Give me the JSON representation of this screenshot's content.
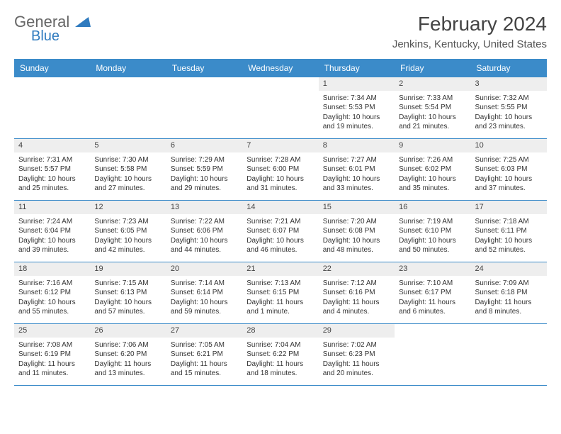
{
  "logo": {
    "general": "General",
    "blue": "Blue"
  },
  "title": "February 2024",
  "location": "Jenkins, Kentucky, United States",
  "colors": {
    "header_bar": "#3b8bc9",
    "daynum_bg": "#eeeeee",
    "text": "#333333",
    "rule": "#3b8bc9"
  },
  "days_of_week": [
    "Sunday",
    "Monday",
    "Tuesday",
    "Wednesday",
    "Thursday",
    "Friday",
    "Saturday"
  ],
  "weeks": [
    [
      null,
      null,
      null,
      null,
      {
        "n": "1",
        "sr": "Sunrise: 7:34 AM",
        "ss": "Sunset: 5:53 PM",
        "d1": "Daylight: 10 hours",
        "d2": "and 19 minutes."
      },
      {
        "n": "2",
        "sr": "Sunrise: 7:33 AM",
        "ss": "Sunset: 5:54 PM",
        "d1": "Daylight: 10 hours",
        "d2": "and 21 minutes."
      },
      {
        "n": "3",
        "sr": "Sunrise: 7:32 AM",
        "ss": "Sunset: 5:55 PM",
        "d1": "Daylight: 10 hours",
        "d2": "and 23 minutes."
      }
    ],
    [
      {
        "n": "4",
        "sr": "Sunrise: 7:31 AM",
        "ss": "Sunset: 5:57 PM",
        "d1": "Daylight: 10 hours",
        "d2": "and 25 minutes."
      },
      {
        "n": "5",
        "sr": "Sunrise: 7:30 AM",
        "ss": "Sunset: 5:58 PM",
        "d1": "Daylight: 10 hours",
        "d2": "and 27 minutes."
      },
      {
        "n": "6",
        "sr": "Sunrise: 7:29 AM",
        "ss": "Sunset: 5:59 PM",
        "d1": "Daylight: 10 hours",
        "d2": "and 29 minutes."
      },
      {
        "n": "7",
        "sr": "Sunrise: 7:28 AM",
        "ss": "Sunset: 6:00 PM",
        "d1": "Daylight: 10 hours",
        "d2": "and 31 minutes."
      },
      {
        "n": "8",
        "sr": "Sunrise: 7:27 AM",
        "ss": "Sunset: 6:01 PM",
        "d1": "Daylight: 10 hours",
        "d2": "and 33 minutes."
      },
      {
        "n": "9",
        "sr": "Sunrise: 7:26 AM",
        "ss": "Sunset: 6:02 PM",
        "d1": "Daylight: 10 hours",
        "d2": "and 35 minutes."
      },
      {
        "n": "10",
        "sr": "Sunrise: 7:25 AM",
        "ss": "Sunset: 6:03 PM",
        "d1": "Daylight: 10 hours",
        "d2": "and 37 minutes."
      }
    ],
    [
      {
        "n": "11",
        "sr": "Sunrise: 7:24 AM",
        "ss": "Sunset: 6:04 PM",
        "d1": "Daylight: 10 hours",
        "d2": "and 39 minutes."
      },
      {
        "n": "12",
        "sr": "Sunrise: 7:23 AM",
        "ss": "Sunset: 6:05 PM",
        "d1": "Daylight: 10 hours",
        "d2": "and 42 minutes."
      },
      {
        "n": "13",
        "sr": "Sunrise: 7:22 AM",
        "ss": "Sunset: 6:06 PM",
        "d1": "Daylight: 10 hours",
        "d2": "and 44 minutes."
      },
      {
        "n": "14",
        "sr": "Sunrise: 7:21 AM",
        "ss": "Sunset: 6:07 PM",
        "d1": "Daylight: 10 hours",
        "d2": "and 46 minutes."
      },
      {
        "n": "15",
        "sr": "Sunrise: 7:20 AM",
        "ss": "Sunset: 6:08 PM",
        "d1": "Daylight: 10 hours",
        "d2": "and 48 minutes."
      },
      {
        "n": "16",
        "sr": "Sunrise: 7:19 AM",
        "ss": "Sunset: 6:10 PM",
        "d1": "Daylight: 10 hours",
        "d2": "and 50 minutes."
      },
      {
        "n": "17",
        "sr": "Sunrise: 7:18 AM",
        "ss": "Sunset: 6:11 PM",
        "d1": "Daylight: 10 hours",
        "d2": "and 52 minutes."
      }
    ],
    [
      {
        "n": "18",
        "sr": "Sunrise: 7:16 AM",
        "ss": "Sunset: 6:12 PM",
        "d1": "Daylight: 10 hours",
        "d2": "and 55 minutes."
      },
      {
        "n": "19",
        "sr": "Sunrise: 7:15 AM",
        "ss": "Sunset: 6:13 PM",
        "d1": "Daylight: 10 hours",
        "d2": "and 57 minutes."
      },
      {
        "n": "20",
        "sr": "Sunrise: 7:14 AM",
        "ss": "Sunset: 6:14 PM",
        "d1": "Daylight: 10 hours",
        "d2": "and 59 minutes."
      },
      {
        "n": "21",
        "sr": "Sunrise: 7:13 AM",
        "ss": "Sunset: 6:15 PM",
        "d1": "Daylight: 11 hours",
        "d2": "and 1 minute."
      },
      {
        "n": "22",
        "sr": "Sunrise: 7:12 AM",
        "ss": "Sunset: 6:16 PM",
        "d1": "Daylight: 11 hours",
        "d2": "and 4 minutes."
      },
      {
        "n": "23",
        "sr": "Sunrise: 7:10 AM",
        "ss": "Sunset: 6:17 PM",
        "d1": "Daylight: 11 hours",
        "d2": "and 6 minutes."
      },
      {
        "n": "24",
        "sr": "Sunrise: 7:09 AM",
        "ss": "Sunset: 6:18 PM",
        "d1": "Daylight: 11 hours",
        "d2": "and 8 minutes."
      }
    ],
    [
      {
        "n": "25",
        "sr": "Sunrise: 7:08 AM",
        "ss": "Sunset: 6:19 PM",
        "d1": "Daylight: 11 hours",
        "d2": "and 11 minutes."
      },
      {
        "n": "26",
        "sr": "Sunrise: 7:06 AM",
        "ss": "Sunset: 6:20 PM",
        "d1": "Daylight: 11 hours",
        "d2": "and 13 minutes."
      },
      {
        "n": "27",
        "sr": "Sunrise: 7:05 AM",
        "ss": "Sunset: 6:21 PM",
        "d1": "Daylight: 11 hours",
        "d2": "and 15 minutes."
      },
      {
        "n": "28",
        "sr": "Sunrise: 7:04 AM",
        "ss": "Sunset: 6:22 PM",
        "d1": "Daylight: 11 hours",
        "d2": "and 18 minutes."
      },
      {
        "n": "29",
        "sr": "Sunrise: 7:02 AM",
        "ss": "Sunset: 6:23 PM",
        "d1": "Daylight: 11 hours",
        "d2": "and 20 minutes."
      },
      null,
      null
    ]
  ]
}
